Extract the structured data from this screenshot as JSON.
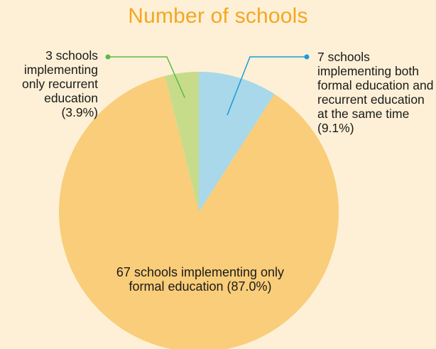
{
  "chart_data": {
    "type": "pie",
    "title": "Number of schools",
    "slices": [
      {
        "label": "7 schools implementing both formal education and recurrent education at the same time (9.1%)",
        "count": 7,
        "percent": 9.1,
        "color": "#a8d8ea"
      },
      {
        "label": "67 schools implementing only formal education (87.0%)",
        "count": 67,
        "percent": 87.0,
        "color": "#f9cd79"
      },
      {
        "label": "3 schools implementing only recurrent education (3.9%)",
        "count": 3,
        "percent": 3.9,
        "color": "#c6dc8a"
      }
    ],
    "leader_colors": {
      "left": "#5cba47",
      "right": "#1f9ad6"
    },
    "title_color": "#f5a623"
  }
}
